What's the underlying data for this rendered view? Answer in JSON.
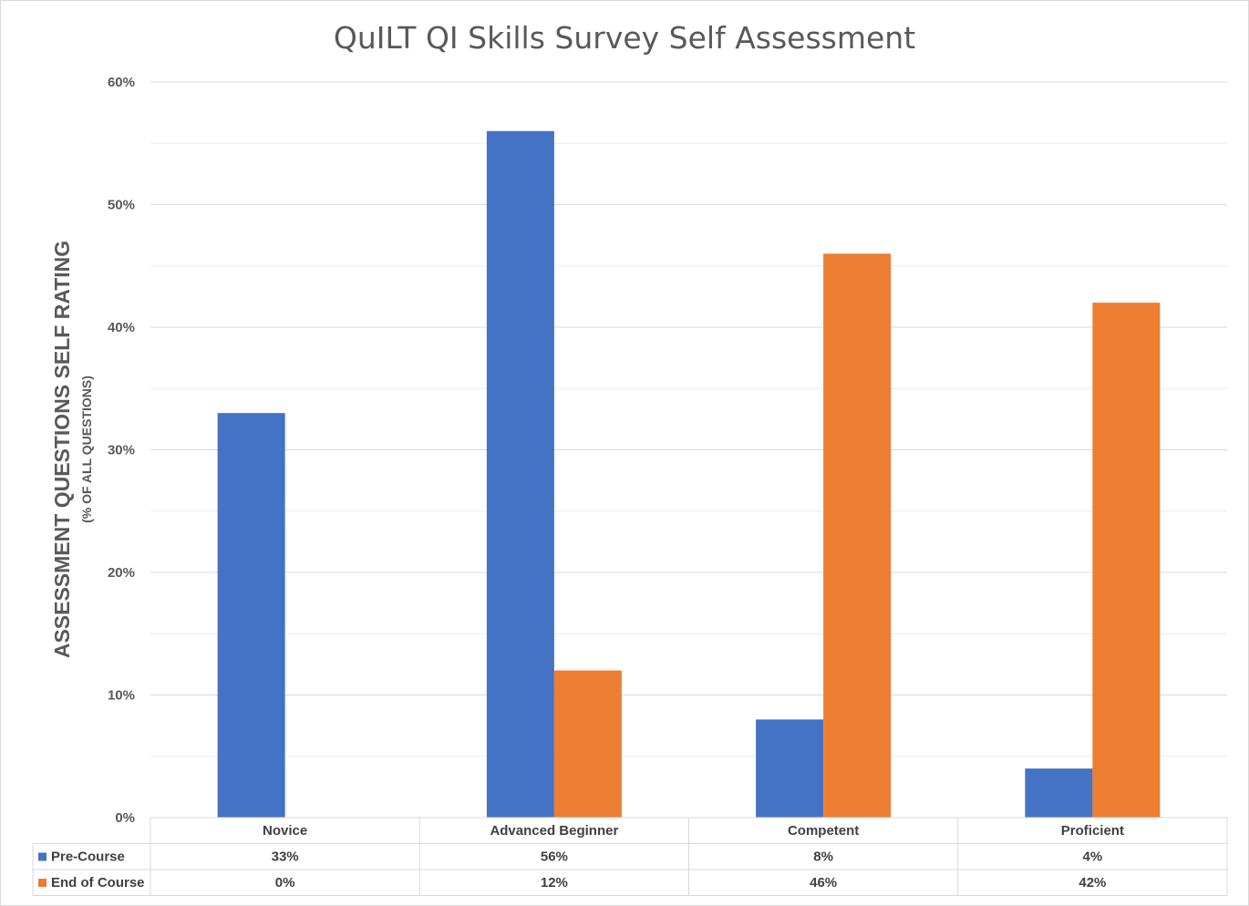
{
  "chart_data": {
    "type": "bar",
    "title": "QuILT QI Skills Survey Self Assessment",
    "ylabel": "ASSESSMENT QUESTIONS SELF RATING",
    "ylabel_sub": "(%  OF ALL QUESTIONS)",
    "categories": [
      "Novice",
      "Advanced Beginner",
      "Competent",
      "Proficient"
    ],
    "series": [
      {
        "name": "Pre-Course",
        "color": "#4472c4",
        "values": [
          33,
          56,
          8,
          4
        ],
        "labels": [
          "33%",
          "56%",
          "8%",
          "4%"
        ]
      },
      {
        "name": "End of Course",
        "color": "#ed7d31",
        "values": [
          0,
          12,
          46,
          42
        ],
        "labels": [
          "0%",
          "12%",
          "46%",
          "42%"
        ]
      }
    ],
    "ylim": [
      0,
      60
    ],
    "yticks": [
      0,
      10,
      20,
      30,
      40,
      50,
      60
    ],
    "ytick_labels": [
      "0%",
      "10%",
      "20%",
      "30%",
      "40%",
      "50%",
      "60%"
    ],
    "grid": true,
    "legend": "data table below chart"
  }
}
